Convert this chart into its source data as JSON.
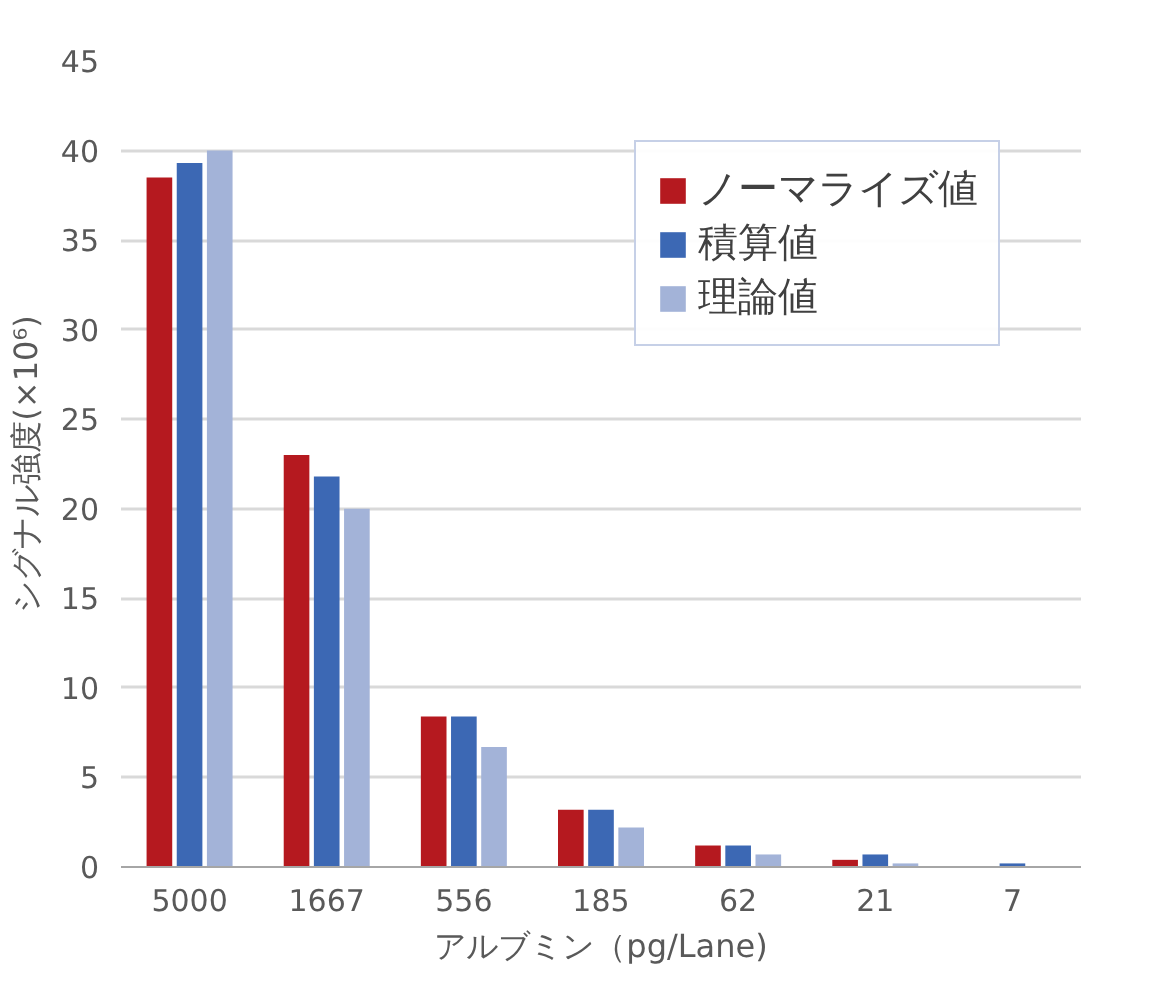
{
  "chart_data": {
    "type": "bar",
    "xlabel": "アルブミン（pg/Lane)",
    "ylabel": "シグナル強度(×10⁶)",
    "categories": [
      "5000",
      "1667",
      "556",
      "185",
      "62",
      "21",
      "7"
    ],
    "series": [
      {
        "name": "ノーマライズ値",
        "color": "#b5191f",
        "values": [
          38.5,
          23,
          8.4,
          3.2,
          1.2,
          0.4,
          0
        ]
      },
      {
        "name": "積算値",
        "color": "#3c68b4",
        "values": [
          39.3,
          21.8,
          8.4,
          3.2,
          1.2,
          0.7,
          0.2
        ]
      },
      {
        "name": "理論値",
        "color": "#a3b3d8",
        "values": [
          40,
          20,
          6.7,
          2.2,
          0.7,
          0.2,
          0
        ]
      }
    ],
    "ylim": [
      0,
      45
    ],
    "yticks": [
      0,
      5,
      10,
      15,
      20,
      25,
      30,
      35,
      40,
      45
    ],
    "grid": "y",
    "legend": "top right"
  }
}
